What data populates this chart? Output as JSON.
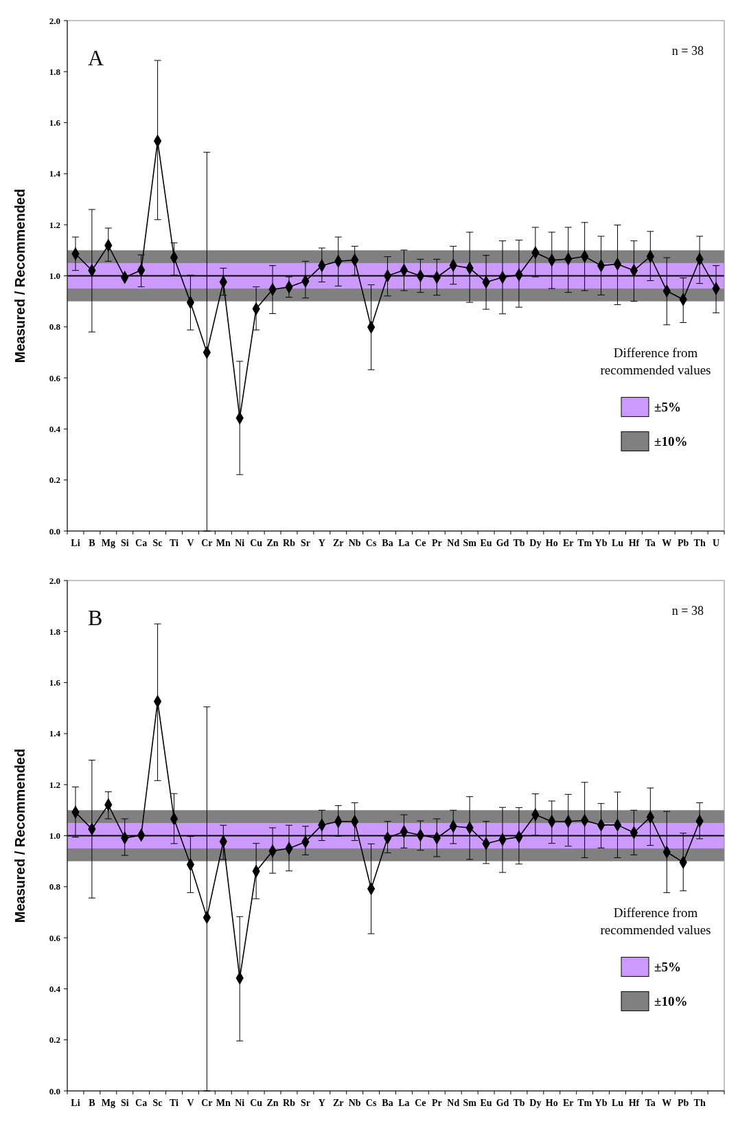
{
  "chart_data": [
    {
      "type": "line",
      "title": "A",
      "annotations": [
        "n = 38"
      ],
      "ylabel": "Measured / Recommended",
      "legend_title": "Difference from recommended values",
      "legend": "bottom right",
      "marker": "diamond",
      "line_style": "solid",
      "grid": false,
      "categories": [
        "Li",
        "B",
        "Mg",
        "Si",
        "Ca",
        "Sc",
        "Ti",
        "V",
        "Cr",
        "Mn",
        "Ni",
        "Cu",
        "Zn",
        "Rb",
        "Sr",
        "Y",
        "Zr",
        "Nb",
        "Cs",
        "Ba",
        "La",
        "Ce",
        "Pr",
        "Nd",
        "Sm",
        "Eu",
        "Gd",
        "Tb",
        "Dy",
        "Ho",
        "Er",
        "Tm",
        "Yb",
        "Lu",
        "Hf",
        "Ta",
        "W",
        "Pb",
        "Th",
        "U"
      ],
      "ylim": [
        0,
        2
      ],
      "yticks": [
        {
          "value": 0,
          "label": "0.0"
        },
        0.2,
        0.4,
        0.6,
        0.8,
        {
          "value": 1,
          "label": "1.0"
        },
        1.2,
        1.4,
        1.6,
        1.8,
        {
          "value": 2,
          "label": "2.0"
        }
      ],
      "bands": [
        {
          "axis": "y",
          "from": 0.95,
          "to": 1.05,
          "label": "±5%",
          "color": "#cc99ff"
        },
        {
          "axis": "y",
          "from": 0.9,
          "to": 1.1,
          "label": "±10%",
          "color": "#808080"
        }
      ],
      "ref_lines": [
        {
          "axis": "y",
          "value": 1,
          "color": "#000000"
        }
      ],
      "series": [
        {
          "color": "#000000",
          "values": [
            1.086,
            1.021,
            1.119,
            0.994,
            1.022,
            1.528,
            1.072,
            0.896,
            0.7,
            0.976,
            0.443,
            0.871,
            0.947,
            0.956,
            0.979,
            1.04,
            1.057,
            1.062,
            0.799,
            1.0,
            1.022,
            1.0,
            0.994,
            1.041,
            1.03,
            0.975,
            0.994,
            1.004,
            1.091,
            1.061,
            1.066,
            1.076,
            1.04,
            1.046,
            1.021,
            1.076,
            0.941,
            0.907,
            1.065,
            0.95
          ],
          "errors": [
            [
              1.021,
              1.152
            ],
            [
              0.78,
              1.26
            ],
            [
              1.057,
              1.187
            ],
            null,
            [
              0.957,
              1.082
            ],
            [
              1.22,
              1.844
            ],
            [
              1.003,
              1.129
            ],
            [
              0.788,
              1.003
            ],
            [
              0,
              1.484
            ],
            [
              0.924,
              1.03
            ],
            [
              0.221,
              0.665
            ],
            [
              0.788,
              0.957
            ],
            [
              0.852,
              1.04
            ],
            [
              0.916,
              0.996
            ],
            [
              0.913,
              1.057
            ],
            [
              0.976,
              1.109
            ],
            [
              0.96,
              1.152
            ],
            [
              1.003,
              1.116
            ],
            [
              0.632,
              0.965
            ],
            [
              0.921,
              1.075
            ],
            [
              0.942,
              1.101
            ],
            [
              0.935,
              1.065
            ],
            [
              0.924,
              1.065
            ],
            [
              0.967,
              1.116
            ],
            [
              0.896,
              1.171
            ],
            [
              0.869,
              1.08
            ],
            [
              0.851,
              1.137
            ],
            [
              0.877,
              1.14
            ],
            [
              0.996,
              1.19
            ],
            [
              0.95,
              1.171
            ],
            [
              0.935,
              1.19
            ],
            [
              0.942,
              1.209
            ],
            [
              0.925,
              1.155
            ],
            [
              0.887,
              1.199
            ],
            [
              0.9,
              1.137
            ],
            [
              0.981,
              1.174
            ],
            [
              0.808,
              1.071
            ],
            [
              0.817,
              0.992
            ],
            [
              0.97,
              1.155
            ],
            [
              0.855,
              1.04
            ]
          ]
        }
      ]
    },
    {
      "type": "line",
      "title": "B",
      "annotations": [
        "n = 38"
      ],
      "ylabel": "Measured / Recommended",
      "legend_title": "Difference from recommended values",
      "legend": "bottom right",
      "marker": "diamond",
      "line_style": "solid",
      "grid": false,
      "categories": [
        "Li",
        "B",
        "Mg",
        "Si",
        "Ca",
        "Sc",
        "Ti",
        "V",
        "Cr",
        "Mn",
        "Ni",
        "Cu",
        "Zn",
        "Rb",
        "Sr",
        "Y",
        "Zr",
        "Nb",
        "Cs",
        "Ba",
        "La",
        "Ce",
        "Pr",
        "Nd",
        "Sm",
        "Eu",
        "Gd",
        "Tb",
        "Dy",
        "Ho",
        "Er",
        "Tm",
        "Yb",
        "Lu",
        "Hf",
        "Ta",
        "W",
        "Pb",
        "Th",
        null
      ],
      "ylim": [
        0,
        2
      ],
      "yticks": [
        {
          "value": 0,
          "label": "0.0"
        },
        0.2,
        0.4,
        0.6,
        0.8,
        {
          "value": 1,
          "label": "1.0"
        },
        1.2,
        1.4,
        1.6,
        1.8,
        {
          "value": 2,
          "label": "2.0"
        }
      ],
      "bands": [
        {
          "axis": "y",
          "from": 0.95,
          "to": 1.05,
          "label": "±5%",
          "color": "#cc99ff"
        },
        {
          "axis": "y",
          "from": 0.9,
          "to": 1.1,
          "label": "±10%",
          "color": "#808080"
        }
      ],
      "ref_lines": [
        {
          "axis": "y",
          "value": 1,
          "color": "#000000"
        }
      ],
      "series": [
        {
          "color": "#000000",
          "values": [
            1.092,
            1.026,
            1.121,
            0.991,
            1.002,
            1.526,
            1.066,
            0.887,
            0.68,
            0.977,
            0.442,
            0.861,
            0.94,
            0.95,
            0.976,
            1.042,
            1.056,
            1.056,
            0.792,
            0.991,
            1.016,
            1.002,
            0.991,
            1.037,
            1.031,
            0.969,
            0.985,
            0.995,
            1.082,
            1.056,
            1.056,
            1.06,
            1.042,
            1.042,
            1.012,
            1.073,
            0.936,
            0.896,
            1.057,
            null
          ],
          "errors": [
            [
              0.994,
              1.191
            ],
            [
              0.756,
              1.296
            ],
            [
              1.066,
              1.172
            ],
            [
              0.923,
              1.066
            ],
            null,
            [
              1.216,
              1.83
            ],
            [
              0.969,
              1.165
            ],
            [
              0.777,
              0.997
            ],
            [
              0,
              1.505
            ],
            [
              0.907,
              1.041
            ],
            [
              0.196,
              0.683
            ],
            [
              0.753,
              0.97
            ],
            [
              0.853,
              1.031
            ],
            [
              0.862,
              1.041
            ],
            [
              0.925,
              1.037
            ],
            [
              0.981,
              1.1
            ],
            [
              0.998,
              1.118
            ],
            [
              0.981,
              1.129
            ],
            [
              0.616,
              0.968
            ],
            [
              0.933,
              1.056
            ],
            [
              0.952,
              1.082
            ],
            [
              0.943,
              1.058
            ],
            [
              0.918,
              1.066
            ],
            [
              0.969,
              1.1
            ],
            [
              0.907,
              1.153
            ],
            [
              0.891,
              1.056
            ],
            [
              0.856,
              1.111
            ],
            [
              0.889,
              1.11
            ],
            [
              1.002,
              1.164
            ],
            [
              0.97,
              1.136
            ],
            [
              0.959,
              1.162
            ],
            [
              0.914,
              1.209
            ],
            [
              0.952,
              1.126
            ],
            [
              0.914,
              1.171
            ],
            [
              0.925,
              1.1
            ],
            [
              0.962,
              1.187
            ],
            [
              0.777,
              1.095
            ],
            [
              0.784,
              1.01
            ],
            [
              0.988,
              1.129
            ],
            null
          ]
        }
      ]
    }
  ]
}
